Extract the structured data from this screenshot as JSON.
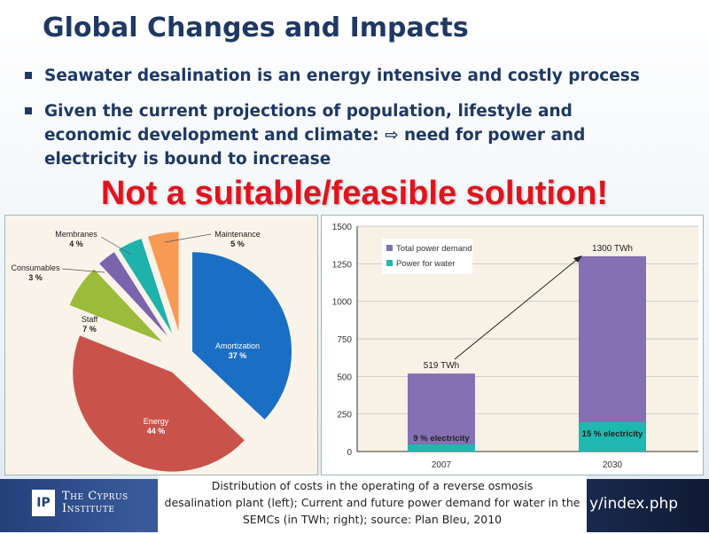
{
  "slide": {
    "title": "Global Changes and Impacts",
    "bullets": [
      "Seawater desalination is an energy intensive and costly process",
      "Given the current projections of population, lifestyle and economic development and climate: ⇨ need for power and electricity is bound to increase"
    ],
    "stamp": "Not a suitable/feasible solution!",
    "caption": [
      "Distribution of costs in the operating of a reverse osmosis",
      "desalination plant (left); Current and future power demand for water in the",
      "SEMCs (in TWh; right); source: Plan Bleu, 2010"
    ],
    "logo": {
      "line1": "The Cyprus",
      "line2": "Institute",
      "mark": "IP"
    },
    "url_fragment": "y/index.php"
  },
  "chart_data": [
    {
      "type": "pie",
      "title": "",
      "slices": [
        {
          "label": "Amortization",
          "value": 37,
          "text": "37 %",
          "color": "#1a6fc4"
        },
        {
          "label": "Energy",
          "value": 44,
          "text": "44 %",
          "color": "#c9534a"
        },
        {
          "label": "Staff",
          "value": 7,
          "text": "7 %",
          "color": "#9bbb3a"
        },
        {
          "label": "Consumables",
          "value": 3,
          "text": "3 %",
          "color": "#7b63ae"
        },
        {
          "label": "Membranes",
          "value": 4,
          "text": "4 %",
          "color": "#1fb2ac"
        },
        {
          "label": "Maintenance",
          "value": 5,
          "text": "5 %",
          "color": "#f79a55"
        }
      ]
    },
    {
      "type": "bar",
      "categories": [
        "2007",
        "2030"
      ],
      "ylim": [
        0,
        1500
      ],
      "yticks": [
        0,
        250,
        500,
        750,
        1000,
        1250,
        1500
      ],
      "series": [
        {
          "name": "Total power demand",
          "values": [
            519,
            1300
          ],
          "color": "#8470b2"
        },
        {
          "name": "Power for water",
          "values": [
            47,
            195
          ],
          "color": "#1fb8b0"
        }
      ],
      "bar_labels": [
        "519 TWh",
        "1300 TWh"
      ],
      "inner_labels": [
        "9 % electricity",
        "15 % electricity"
      ],
      "legend": "top-left"
    }
  ]
}
